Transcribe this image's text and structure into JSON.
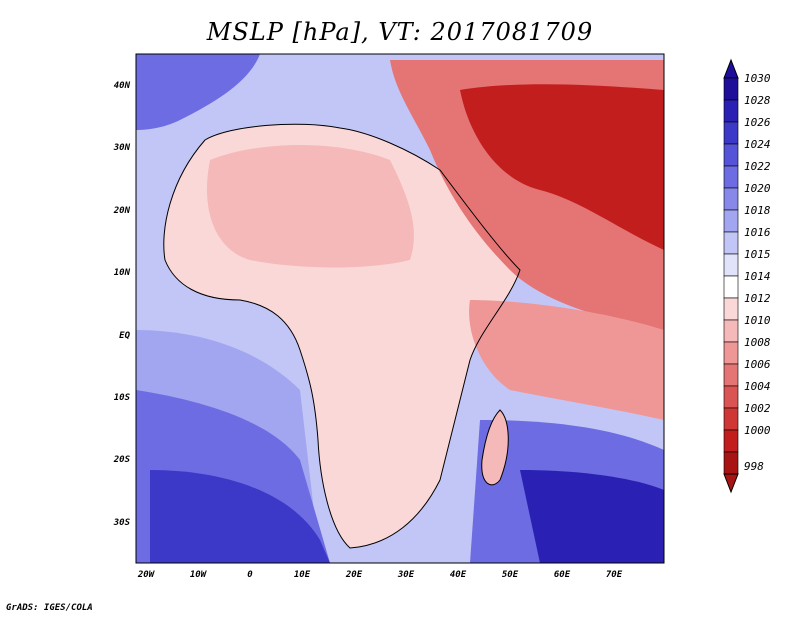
{
  "title": "MSLP [hPa], VT: 2017081709",
  "credit": "GrADS: IGES/COLA",
  "axes": {
    "lon_labels": [
      "20W",
      "10W",
      "0",
      "10E",
      "20E",
      "30E",
      "40E",
      "50E",
      "60E",
      "70E"
    ],
    "lat_labels": [
      "40N",
      "30N",
      "20N",
      "10N",
      "EQ",
      "10S",
      "20S",
      "30S"
    ]
  },
  "colorbar": {
    "levels": [
      "1030",
      "1028",
      "1026",
      "1024",
      "1022",
      "1020",
      "1018",
      "1016",
      "1015",
      "1014",
      "1012",
      "1010",
      "1008",
      "1006",
      "1004",
      "1002",
      "1000",
      "998"
    ],
    "colors": [
      "#1e0e9a",
      "#2a20b4",
      "#3c38c8",
      "#5553d8",
      "#6d6ce2",
      "#8788ea",
      "#a2a6f0",
      "#c2c6f6",
      "#e1e3fb",
      "#ffffff",
      "#fbd8d8",
      "#f6b9b9",
      "#ef9797",
      "#e57474",
      "#db5454",
      "#cf3636",
      "#c21e1e",
      "#a81414"
    ]
  },
  "map": {
    "palette": {
      "ocean_deep": "#2a20b4",
      "ocean_mid": "#5553d8",
      "ocean_light": "#a2a6f0",
      "ocean_pale": "#e1e3fb",
      "land_pale": "#fbd8d8",
      "land_mid": "#f6b9b9",
      "land_warm": "#ef9797",
      "heat_low": "#cf3636"
    }
  }
}
